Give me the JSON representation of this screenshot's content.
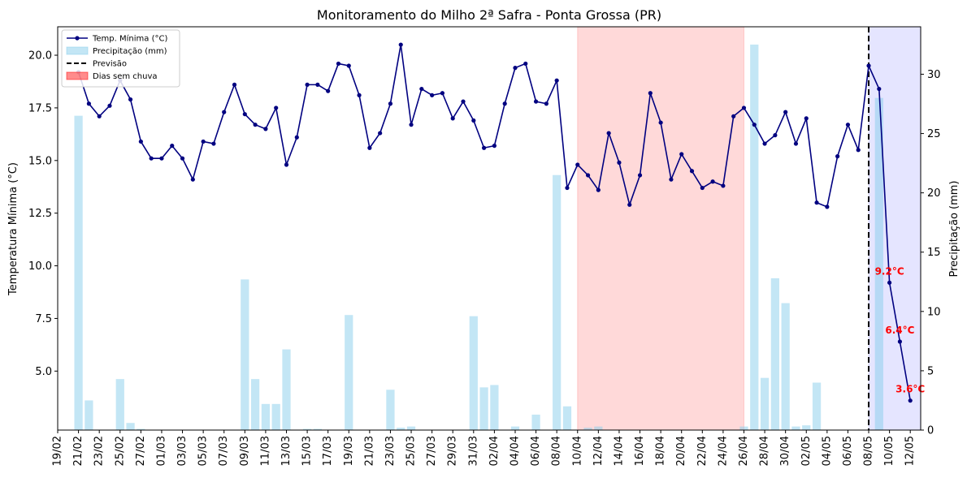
{
  "chart_data": {
    "type": "line",
    "title": "Monitoramento do Milho 2ª Safra - Ponta Grossa (PR)",
    "ylabel": "Temperatura Mínima (°C)",
    "y2label": "Precipitação (mm)",
    "xlabel": "",
    "ylim": [
      2.2,
      21.35
    ],
    "y2lim": [
      0,
      34
    ],
    "yticks": [
      5.0,
      7.5,
      10.0,
      12.5,
      15.0,
      17.5,
      20.0
    ],
    "ytick_labels": [
      "5.0",
      "7.5",
      "10.0",
      "12.5",
      "15.0",
      "17.5",
      "20.0"
    ],
    "y2ticks": [
      0,
      5,
      10,
      15,
      20,
      25,
      30
    ],
    "x_start": "2025-02-19",
    "x_end": "2025-05-13",
    "xticks": [
      "19/02",
      "21/02",
      "23/02",
      "25/02",
      "27/02",
      "01/03",
      "03/03",
      "05/03",
      "07/03",
      "09/03",
      "11/03",
      "13/03",
      "15/03",
      "17/03",
      "19/03",
      "21/03",
      "23/03",
      "25/03",
      "27/03",
      "29/03",
      "31/03",
      "02/04",
      "04/04",
      "06/04",
      "08/04",
      "10/04",
      "12/04",
      "14/04",
      "16/04",
      "18/04",
      "20/04",
      "22/04",
      "24/04",
      "26/04",
      "28/04",
      "30/04",
      "02/05",
      "04/05",
      "06/05",
      "08/05",
      "10/05",
      "12/05"
    ],
    "legend_position": "top-left",
    "legend": [
      {
        "label": "Temp. Mínima (°C)",
        "kind": "line-marker",
        "color": "#000080"
      },
      {
        "label": "Precipitação (mm)",
        "kind": "patch",
        "color": "#87ceeb"
      },
      {
        "label": "Previsão",
        "kind": "dashed-line",
        "color": "#000000"
      },
      {
        "label": "Dias sem chuva",
        "kind": "patch",
        "color": "#ff0000"
      }
    ],
    "series": [
      {
        "name": "Temp. Mínima (°C)",
        "color": "#000080",
        "points": [
          [
            "2025-02-21",
            19.2
          ],
          [
            "2025-02-22",
            17.7
          ],
          [
            "2025-02-23",
            17.1
          ],
          [
            "2025-02-24",
            17.6
          ],
          [
            "2025-02-25",
            18.8
          ],
          [
            "2025-02-26",
            17.9
          ],
          [
            "2025-02-27",
            15.9
          ],
          [
            "2025-02-28",
            15.1
          ],
          [
            "2025-03-01",
            15.1
          ],
          [
            "2025-03-02",
            15.7
          ],
          [
            "2025-03-03",
            15.1
          ],
          [
            "2025-03-04",
            14.1
          ],
          [
            "2025-03-05",
            15.9
          ],
          [
            "2025-03-06",
            15.8
          ],
          [
            "2025-03-07",
            17.3
          ],
          [
            "2025-03-08",
            18.6
          ],
          [
            "2025-03-09",
            17.2
          ],
          [
            "2025-03-10",
            16.7
          ],
          [
            "2025-03-11",
            16.5
          ],
          [
            "2025-03-12",
            17.5
          ],
          [
            "2025-03-13",
            14.8
          ],
          [
            "2025-03-14",
            16.1
          ],
          [
            "2025-03-15",
            18.6
          ],
          [
            "2025-03-16",
            18.6
          ],
          [
            "2025-03-17",
            18.3
          ],
          [
            "2025-03-18",
            19.6
          ],
          [
            "2025-03-19",
            19.5
          ],
          [
            "2025-03-20",
            18.1
          ],
          [
            "2025-03-21",
            15.6
          ],
          [
            "2025-03-22",
            16.3
          ],
          [
            "2025-03-23",
            17.7
          ],
          [
            "2025-03-24",
            20.5
          ],
          [
            "2025-03-25",
            16.7
          ],
          [
            "2025-03-26",
            18.4
          ],
          [
            "2025-03-27",
            18.1
          ],
          [
            "2025-03-28",
            18.2
          ],
          [
            "2025-03-29",
            17.0
          ],
          [
            "2025-03-30",
            17.8
          ],
          [
            "2025-03-31",
            16.9
          ],
          [
            "2025-04-01",
            15.6
          ],
          [
            "2025-04-02",
            15.7
          ],
          [
            "2025-04-03",
            17.7
          ],
          [
            "2025-04-04",
            19.4
          ],
          [
            "2025-04-05",
            19.6
          ],
          [
            "2025-04-06",
            17.8
          ],
          [
            "2025-04-07",
            17.7
          ],
          [
            "2025-04-08",
            18.8
          ],
          [
            "2025-04-09",
            13.7
          ],
          [
            "2025-04-10",
            14.8
          ],
          [
            "2025-04-11",
            14.3
          ],
          [
            "2025-04-12",
            13.6
          ],
          [
            "2025-04-13",
            16.3
          ],
          [
            "2025-04-14",
            14.9
          ],
          [
            "2025-04-15",
            12.9
          ],
          [
            "2025-04-16",
            14.3
          ],
          [
            "2025-04-17",
            18.2
          ],
          [
            "2025-04-18",
            16.8
          ],
          [
            "2025-04-19",
            14.1
          ],
          [
            "2025-04-20",
            15.3
          ],
          [
            "2025-04-21",
            14.5
          ],
          [
            "2025-04-22",
            13.7
          ],
          [
            "2025-04-23",
            14.0
          ],
          [
            "2025-04-24",
            13.8
          ],
          [
            "2025-04-25",
            17.1
          ],
          [
            "2025-04-26",
            17.5
          ],
          [
            "2025-04-27",
            16.7
          ],
          [
            "2025-04-28",
            15.8
          ],
          [
            "2025-04-29",
            16.2
          ],
          [
            "2025-04-30",
            17.3
          ],
          [
            "2025-05-01",
            15.8
          ],
          [
            "2025-05-02",
            17.0
          ],
          [
            "2025-05-03",
            13.0
          ],
          [
            "2025-05-04",
            12.8
          ],
          [
            "2025-05-05",
            15.2
          ],
          [
            "2025-05-06",
            16.7
          ],
          [
            "2025-05-07",
            15.5
          ],
          [
            "2025-05-08",
            19.5
          ],
          [
            "2025-05-09",
            18.4
          ],
          [
            "2025-05-10",
            9.2
          ],
          [
            "2025-05-11",
            6.4
          ],
          [
            "2025-05-12",
            3.6
          ]
        ]
      },
      {
        "name": "Precipitação (mm)",
        "color": "#87ceeb",
        "points": [
          [
            "2025-02-21",
            26.5
          ],
          [
            "2025-02-22",
            2.5
          ],
          [
            "2025-02-25",
            4.3
          ],
          [
            "2025-02-26",
            0.6
          ],
          [
            "2025-02-27",
            0.1
          ],
          [
            "2025-03-09",
            12.7
          ],
          [
            "2025-03-10",
            4.3
          ],
          [
            "2025-03-11",
            2.2
          ],
          [
            "2025-03-12",
            2.2
          ],
          [
            "2025-03-13",
            6.8
          ],
          [
            "2025-03-15",
            0.1
          ],
          [
            "2025-03-16",
            0.1
          ],
          [
            "2025-03-19",
            9.7
          ],
          [
            "2025-03-23",
            3.4
          ],
          [
            "2025-03-24",
            0.2
          ],
          [
            "2025-03-25",
            0.3
          ],
          [
            "2025-03-31",
            9.6
          ],
          [
            "2025-04-01",
            3.6
          ],
          [
            "2025-04-02",
            3.8
          ],
          [
            "2025-04-04",
            0.3
          ],
          [
            "2025-04-06",
            1.3
          ],
          [
            "2025-04-08",
            21.5
          ],
          [
            "2025-04-09",
            2.0
          ],
          [
            "2025-04-11",
            0.2
          ],
          [
            "2025-04-12",
            0.3
          ],
          [
            "2025-04-26",
            0.3
          ],
          [
            "2025-04-27",
            32.5
          ],
          [
            "2025-04-28",
            4.4
          ],
          [
            "2025-04-29",
            12.8
          ],
          [
            "2025-04-30",
            10.7
          ],
          [
            "2025-05-01",
            0.3
          ],
          [
            "2025-05-02",
            0.4
          ],
          [
            "2025-05-03",
            4.0
          ],
          [
            "2025-05-09",
            28.0
          ]
        ]
      }
    ],
    "spans": [
      {
        "name": "Dias sem chuva",
        "start": "2025-04-10",
        "end": "2025-04-26",
        "color": "#ff0000"
      },
      {
        "name": "Previsão",
        "start": "2025-05-08",
        "end": "2025-05-13",
        "color": "#0000ff"
      }
    ],
    "forecast_line": "2025-05-08",
    "annotations": [
      {
        "text": "9.2°C",
        "date": "2025-05-10",
        "value": 9.2,
        "color": "#ff0000"
      },
      {
        "text": "6.4°C",
        "date": "2025-05-11",
        "value": 6.4,
        "color": "#ff0000"
      },
      {
        "text": "3.6°C",
        "date": "2025-05-12",
        "value": 3.6,
        "color": "#ff0000"
      }
    ]
  }
}
